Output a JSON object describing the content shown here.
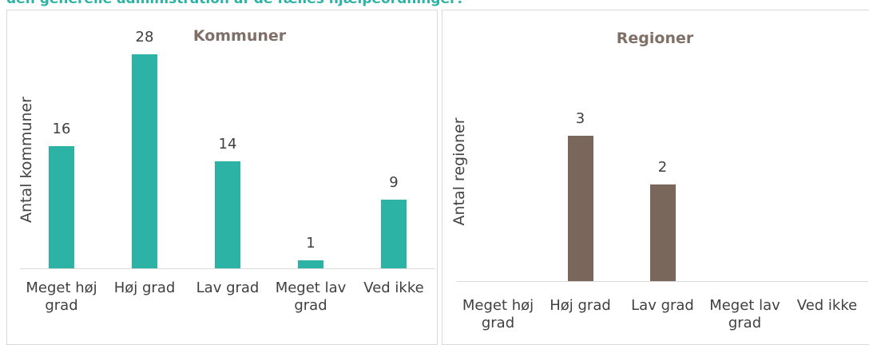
{
  "heading": "den generelle administration af de fælles hjælpeordninger?",
  "chart_data": [
    {
      "type": "bar",
      "title": "Kommuner",
      "y_label": "Antal kommuner",
      "categories": [
        "Meget høj grad",
        "Høj grad",
        "Lav grad",
        "Meget lav grad",
        "Ved ikke"
      ],
      "values": [
        16,
        28,
        14,
        1,
        9
      ],
      "color": "#2db3a6",
      "ylim": [
        0,
        30
      ]
    },
    {
      "type": "bar",
      "title": "Regioner",
      "y_label": "Antal regioner",
      "categories": [
        "Meget høj grad",
        "Høj grad",
        "Lav grad",
        "Meget lav grad",
        "Ved ikke"
      ],
      "values": [
        null,
        3,
        2,
        null,
        null
      ],
      "color": "#7a675b",
      "ylim": [
        0,
        3.5
      ]
    }
  ]
}
